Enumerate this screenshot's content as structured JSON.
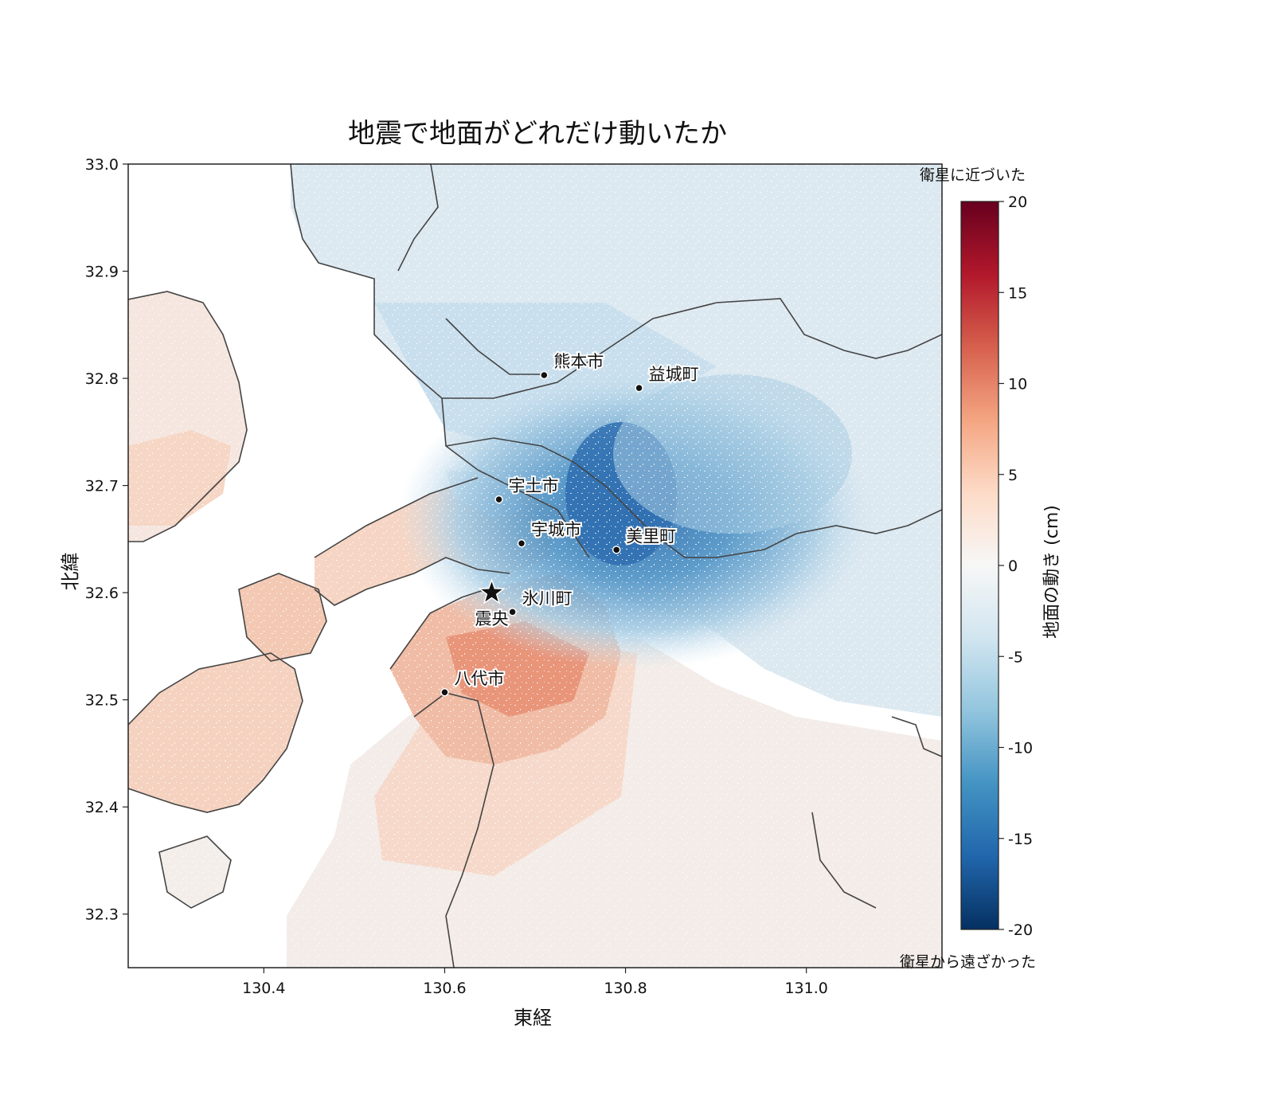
{
  "title": "地震で地面がどれだけ動いたか",
  "map": {
    "xlabel": "東経",
    "ylabel": "北緯",
    "xlim": [
      130.25,
      131.15
    ],
    "ylim": [
      32.25,
      33.0
    ],
    "x_ticks": [
      "130.4",
      "130.6",
      "130.8",
      "131.0"
    ],
    "y_ticks": [
      "32.3",
      "32.4",
      "32.5",
      "32.6",
      "32.7",
      "32.8",
      "32.9",
      "33.0"
    ],
    "places": [
      {
        "label": "熊本市",
        "lon": 130.71,
        "lat": 32.803
      },
      {
        "label": "益城町",
        "lon": 130.815,
        "lat": 32.791
      },
      {
        "label": "宇土市",
        "lon": 130.66,
        "lat": 32.687
      },
      {
        "label": "宇城市",
        "lon": 130.685,
        "lat": 32.646
      },
      {
        "label": "美里町",
        "lon": 130.79,
        "lat": 32.64
      },
      {
        "label": "氷川町",
        "lon": 130.675,
        "lat": 32.582
      },
      {
        "label": "八代市",
        "lon": 130.6,
        "lat": 32.507
      }
    ],
    "epicenter": {
      "label": "震央",
      "lon": 130.652,
      "lat": 32.6
    }
  },
  "colorbar": {
    "label": "地面の動き (cm)",
    "ticks": [
      "20",
      "15",
      "10",
      "5",
      "0",
      "-5",
      "-10",
      "-15",
      "-20"
    ],
    "range": [
      -20,
      20
    ],
    "top_note": "衛星に近づいた",
    "bottom_note": "衛星から遠ざかった",
    "colormap": [
      "#67001f",
      "#b2182b",
      "#d6604d",
      "#f4a582",
      "#fddbc7",
      "#f7f7f7",
      "#d1e5f0",
      "#92c5de",
      "#4393c3",
      "#2166ac",
      "#053061"
    ]
  },
  "colors": {
    "coastline": "#444444",
    "sea": "#ffffff"
  }
}
